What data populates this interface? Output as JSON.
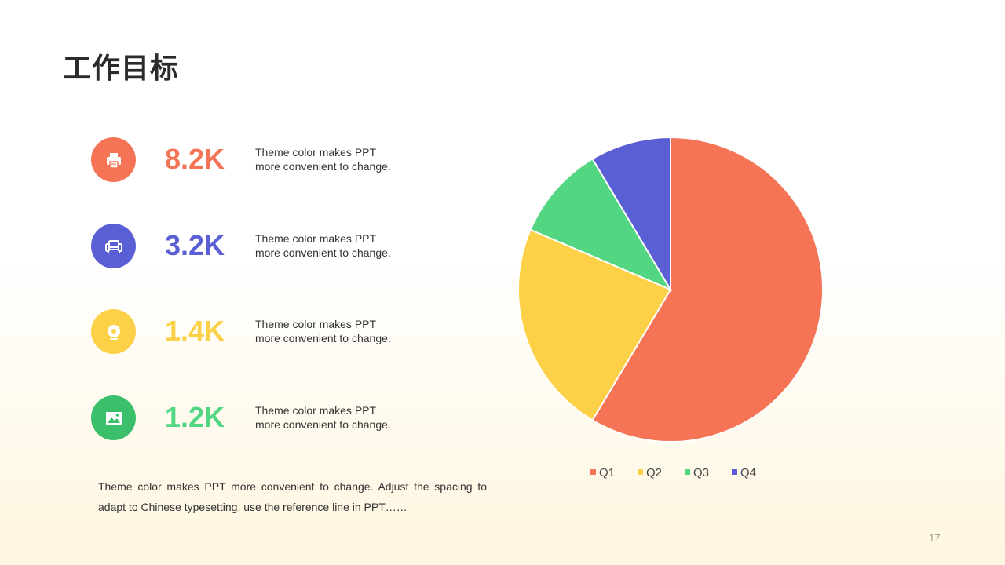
{
  "title": "工作目标",
  "metrics": [
    {
      "value": "8.2K",
      "text1": "Theme color makes PPT",
      "text2": "more convenient  to change.",
      "color": "#f47455",
      "icon": "printer-icon"
    },
    {
      "value": "3.2K",
      "text1": "Theme color makes PPT",
      "text2": "more convenient  to change.",
      "color": "#5a5fd6",
      "icon": "sofa-icon"
    },
    {
      "value": "1.4K",
      "text1": "Theme color makes PPT",
      "text2": "more convenient  to change.",
      "color": "#fdd147",
      "icon": "disc-icon"
    },
    {
      "value": "1.2K",
      "text1": "Theme color makes PPT",
      "text2": "more convenient  to change.",
      "color": "#52d681",
      "icon": "image-icon"
    }
  ],
  "icon_circle_colors": {
    "image": "#3cbf6a"
  },
  "bottom_text": "Theme color makes PPT more convenient  to change.  Adjust the spacing to adapt to Chinese  typesetting,  use the reference line  in PPT……",
  "page_number": "17",
  "chart_data": {
    "type": "pie",
    "categories": [
      "Q1",
      "Q2",
      "Q3",
      "Q4"
    ],
    "values": [
      8.2,
      3.2,
      1.4,
      1.2
    ],
    "colors": [
      "#f47455",
      "#fdd147",
      "#52d681",
      "#5a5fd6"
    ],
    "start_angle_deg": 0,
    "direction": "clockwise",
    "legend_position": "bottom"
  }
}
